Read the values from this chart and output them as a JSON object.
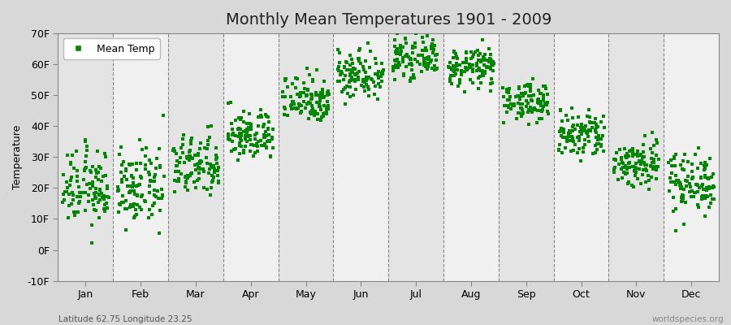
{
  "title": "Monthly Mean Temperatures 1901 - 2009",
  "ylabel": "Temperature",
  "subtitle": "Latitude 62.75 Longitude 23.25",
  "watermark": "worldspecies.org",
  "legend_label": "Mean Temp",
  "ylim": [
    -10,
    70
  ],
  "yticks": [
    -10,
    0,
    10,
    20,
    30,
    40,
    50,
    60,
    70
  ],
  "ytick_labels": [
    "-10F",
    "0F",
    "10F",
    "20F",
    "30F",
    "40F",
    "50F",
    "60F",
    "70F"
  ],
  "months": [
    "Jan",
    "Feb",
    "Mar",
    "Apr",
    "May",
    "Jun",
    "Jul",
    "Aug",
    "Sep",
    "Oct",
    "Nov",
    "Dec"
  ],
  "month_means_F": [
    20,
    20,
    27,
    37,
    49,
    57,
    62,
    59,
    48,
    37,
    28,
    22
  ],
  "month_stds_F": [
    6,
    6,
    5,
    4,
    4,
    4,
    3,
    3,
    3,
    4,
    4,
    5
  ],
  "n_years": 109,
  "marker_color": "#008800",
  "marker_size": 3.5,
  "bg_color_light": "#f0f0f0",
  "bg_color_dark": "#e4e4e4",
  "fig_bg_color": "#d8d8d8",
  "title_fontsize": 14,
  "label_fontsize": 9,
  "tick_fontsize": 9,
  "dashed_line_color": "#888888"
}
